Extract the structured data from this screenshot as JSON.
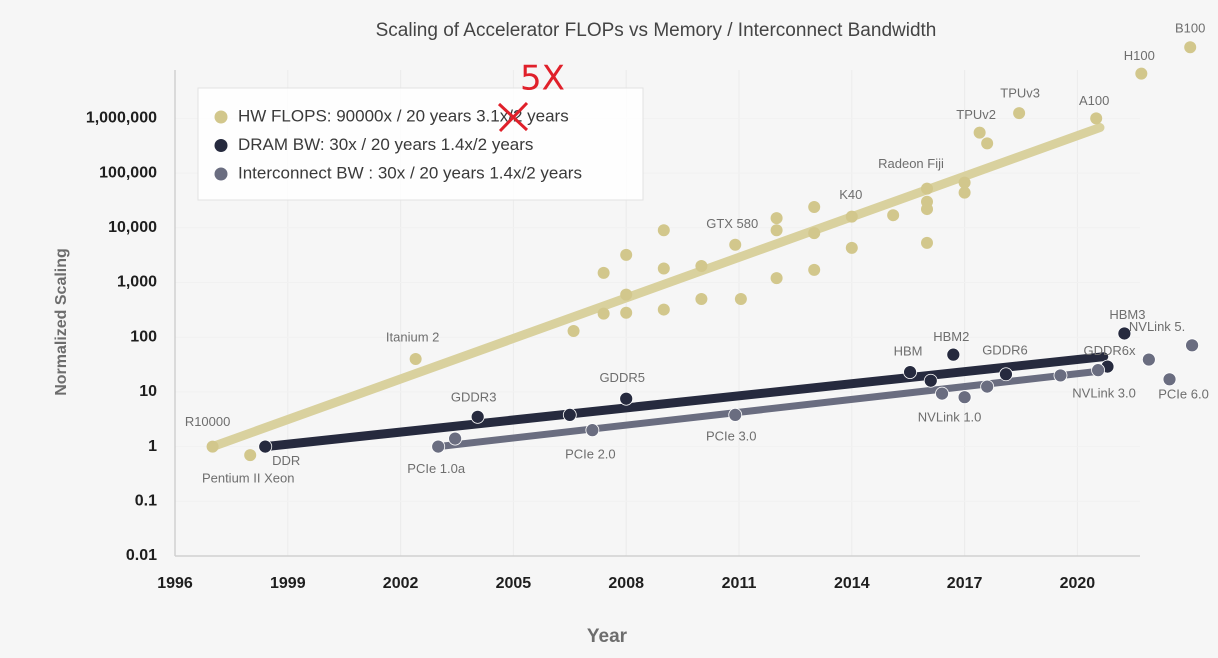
{
  "chart_data": {
    "type": "scatter",
    "title": "Scaling of Accelerator FLOPs vs Memory / Interconnect Bandwidth",
    "xlabel": "Year",
    "ylabel": "Normalized Scaling",
    "log_y": true,
    "grid": true,
    "legend": "upper left",
    "annotation": "5X",
    "xlim": [
      1996,
      2022
    ],
    "xticks": [
      1996,
      1999,
      2002,
      2005,
      2008,
      2011,
      2014,
      2017,
      2020
    ],
    "ylim": [
      0.01,
      10000000
    ],
    "yticks": [
      0.01,
      0.1,
      1,
      10,
      100,
      {
        "value": 1000,
        "label": "1,000"
      },
      {
        "value": 10000,
        "label": "10,000"
      },
      {
        "value": 100000,
        "label": "100,000"
      },
      {
        "value": 1000000,
        "label": "1,000,000"
      }
    ],
    "series": [
      {
        "name": "HW FLOPS: 90000x / 20 years 3.1x/2 years",
        "color": "#d2c78c",
        "trend_color": "#d9d19e",
        "x": [
          1997,
          1998,
          2002.4,
          2006.6,
          2007.4,
          2007.4,
          2008,
          2008,
          2008,
          2009,
          2009,
          2009,
          2010,
          2010,
          2010.9,
          2011.05,
          2012,
          2012,
          2012,
          2013,
          2013,
          2013,
          2014,
          2014,
          2015.1,
          2016,
          2016,
          2016,
          2016,
          2017,
          2017,
          2017.4,
          2017.6,
          2018.45,
          2020.5,
          2021.7,
          2023
        ],
        "values": [
          1,
          0.7,
          40,
          130,
          1500,
          270,
          3200,
          600,
          280,
          9000,
          1800,
          320,
          2000,
          500,
          4900,
          500,
          15000,
          9000,
          1200,
          24000,
          8000,
          1700,
          16000,
          4300,
          17000,
          52000,
          30000,
          22000,
          5300,
          67000,
          44000,
          550000,
          350000,
          1250000,
          1000000,
          6600000,
          20000000
        ],
        "point_labels": [
          "R10000",
          "Pentium II Xeon",
          "Itanium 2",
          null,
          null,
          null,
          null,
          null,
          null,
          null,
          null,
          null,
          null,
          null,
          "GTX 580",
          null,
          null,
          null,
          null,
          null,
          null,
          null,
          "K40",
          null,
          null,
          "Radeon Fiji",
          null,
          null,
          null,
          null,
          null,
          null,
          "TPUv2",
          "TPUv3",
          "A100",
          "H100",
          "B100"
        ],
        "trend": {
          "x": [
            1997,
            2020.6
          ],
          "values": [
            1,
            680000
          ]
        }
      },
      {
        "name": "DRAM BW: 30x / 20 years 1.4x/2 years",
        "color": "#262a3e",
        "trend_color": "#262a3e",
        "x": [
          1998.4,
          2004.05,
          2006.5,
          2008,
          2015.55,
          2016.1,
          2016.7,
          2018.1,
          2020.8,
          2021.25
        ],
        "values": [
          1,
          3.5,
          3.8,
          7.5,
          23,
          16,
          48,
          21,
          29,
          117
        ],
        "point_labels": [
          "DDR",
          "GDDR3",
          null,
          "GDDR5",
          "HBM",
          null,
          "HBM2",
          "GDDR6",
          "GDDR6x",
          "HBM3"
        ],
        "trend": {
          "x": [
            1998.4,
            2020.7
          ],
          "values": [
            1,
            44
          ]
        }
      },
      {
        "name": "Interconnect BW : 30x / 20 years 1.4x/2 years",
        "color": "#6a6d80",
        "trend_color": "#6a6d80",
        "x": [
          2003,
          2003.45,
          2007.1,
          2010.9,
          2016.4,
          2017,
          2017.6,
          2019.55,
          2020.55,
          2021.9,
          2022.45,
          2023.05
        ],
        "values": [
          1,
          1.4,
          2,
          3.8,
          9.3,
          8,
          12.5,
          20,
          25,
          39,
          17,
          71
        ],
        "point_labels": [
          "PCIe 1.0a",
          null,
          "PCIe 2.0",
          "PCIe 3.0",
          null,
          "NVLink 1.0",
          null,
          null,
          "NVLink 3.0",
          null,
          "PCIe 6.0",
          "NVLink 5."
        ],
        "trend": {
          "x": [
            2003,
            2020.6
          ],
          "values": [
            1,
            24
          ]
        }
      }
    ]
  }
}
